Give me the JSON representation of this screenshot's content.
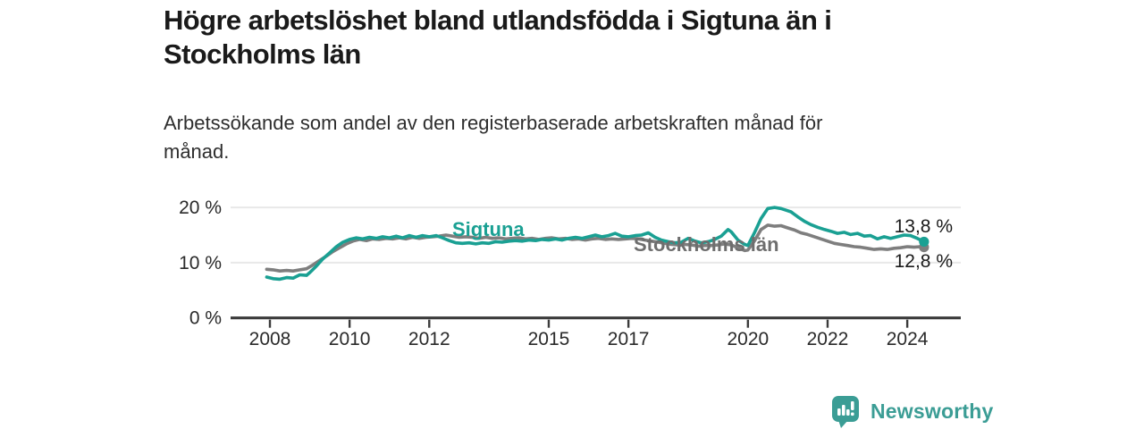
{
  "header": {
    "title_lines": [
      "Högre arbetslöshet bland utlandsfödda i Sigtuna än i",
      "Stockholms län"
    ],
    "subtitle_lines": [
      "Arbetssökande som andel av den registerbaserade arbetskraften månad för",
      "månad."
    ]
  },
  "chart_data": {
    "type": "line",
    "title": "Högre arbetslöshet bland utlandsfödda i Sigtuna än i Stockholms län",
    "subtitle": "Arbetssökande som andel av den registerbaserade arbetskraften månad för månad.",
    "xlabel": "",
    "ylabel": "",
    "x_unit": "year (monthly observations)",
    "y_unit": "percent of registered labour force",
    "xlim": [
      2006.9,
      2025.4
    ],
    "ylim": [
      0,
      22
    ],
    "x_ticks": [
      2008,
      2010,
      2012,
      2015,
      2017,
      2020,
      2022,
      2024
    ],
    "y_ticks": [
      {
        "value": 0,
        "label": "0 %"
      },
      {
        "value": 10,
        "label": "10 %"
      },
      {
        "value": 20,
        "label": "20 %"
      }
    ],
    "grid": "horizontal-light",
    "legend": "inline-labels-on-lines",
    "series": [
      {
        "name": "Stockholms län",
        "color": "#7e7e7e",
        "label_color": "#6e6e6e",
        "end_value": 12.8,
        "end_label": "12,8 %",
        "points": [
          [
            2007.92,
            8.8
          ],
          [
            2008.08,
            8.7
          ],
          [
            2008.25,
            8.5
          ],
          [
            2008.42,
            8.6
          ],
          [
            2008.58,
            8.5
          ],
          [
            2008.75,
            8.7
          ],
          [
            2008.92,
            8.9
          ],
          [
            2009.08,
            9.6
          ],
          [
            2009.25,
            10.4
          ],
          [
            2009.42,
            11.2
          ],
          [
            2009.58,
            12.0
          ],
          [
            2009.75,
            12.7
          ],
          [
            2009.92,
            13.4
          ],
          [
            2010.08,
            13.9
          ],
          [
            2010.25,
            14.2
          ],
          [
            2010.42,
            14.0
          ],
          [
            2010.58,
            14.3
          ],
          [
            2010.75,
            14.2
          ],
          [
            2010.92,
            14.4
          ],
          [
            2011.08,
            14.3
          ],
          [
            2011.25,
            14.5
          ],
          [
            2011.42,
            14.3
          ],
          [
            2011.58,
            14.6
          ],
          [
            2011.75,
            14.4
          ],
          [
            2011.92,
            14.6
          ],
          [
            2012.08,
            14.7
          ],
          [
            2012.25,
            14.8
          ],
          [
            2012.42,
            15.0
          ],
          [
            2012.58,
            14.8
          ],
          [
            2012.75,
            14.6
          ],
          [
            2012.92,
            14.7
          ],
          [
            2013.08,
            14.6
          ],
          [
            2013.25,
            14.4
          ],
          [
            2013.42,
            14.6
          ],
          [
            2013.58,
            14.4
          ],
          [
            2013.75,
            14.5
          ],
          [
            2013.92,
            14.3
          ],
          [
            2014.08,
            14.4
          ],
          [
            2014.25,
            14.5
          ],
          [
            2014.42,
            14.3
          ],
          [
            2014.58,
            14.4
          ],
          [
            2014.75,
            14.2
          ],
          [
            2014.92,
            14.4
          ],
          [
            2015.08,
            14.5
          ],
          [
            2015.25,
            14.3
          ],
          [
            2015.42,
            14.4
          ],
          [
            2015.58,
            14.2
          ],
          [
            2015.75,
            14.3
          ],
          [
            2015.92,
            14.1
          ],
          [
            2016.08,
            14.3
          ],
          [
            2016.25,
            14.4
          ],
          [
            2016.42,
            14.2
          ],
          [
            2016.58,
            14.3
          ],
          [
            2016.75,
            14.2
          ],
          [
            2016.92,
            14.3
          ],
          [
            2017.08,
            14.4
          ],
          [
            2017.25,
            14.3
          ],
          [
            2017.42,
            14.1
          ],
          [
            2017.58,
            13.9
          ],
          [
            2017.75,
            13.7
          ],
          [
            2017.92,
            13.5
          ],
          [
            2018.08,
            13.3
          ],
          [
            2018.25,
            13.2
          ],
          [
            2018.42,
            13.3
          ],
          [
            2018.58,
            13.2
          ],
          [
            2018.75,
            13.0
          ],
          [
            2018.92,
            13.1
          ],
          [
            2019.08,
            13.1
          ],
          [
            2019.25,
            13.2
          ],
          [
            2019.42,
            13.4
          ],
          [
            2019.58,
            13.2
          ],
          [
            2019.75,
            12.7
          ],
          [
            2019.92,
            12.2
          ],
          [
            2020.0,
            12.3
          ],
          [
            2020.17,
            14.0
          ],
          [
            2020.33,
            16.0
          ],
          [
            2020.5,
            16.8
          ],
          [
            2020.67,
            16.6
          ],
          [
            2020.83,
            16.7
          ],
          [
            2021.0,
            16.3
          ],
          [
            2021.17,
            15.9
          ],
          [
            2021.33,
            15.4
          ],
          [
            2021.5,
            15.1
          ],
          [
            2021.67,
            14.7
          ],
          [
            2021.83,
            14.3
          ],
          [
            2022.0,
            13.9
          ],
          [
            2022.17,
            13.5
          ],
          [
            2022.33,
            13.3
          ],
          [
            2022.5,
            13.1
          ],
          [
            2022.67,
            12.9
          ],
          [
            2022.83,
            12.8
          ],
          [
            2023.0,
            12.6
          ],
          [
            2023.17,
            12.4
          ],
          [
            2023.33,
            12.5
          ],
          [
            2023.5,
            12.4
          ],
          [
            2023.67,
            12.6
          ],
          [
            2023.83,
            12.7
          ],
          [
            2024.0,
            12.9
          ],
          [
            2024.17,
            12.8
          ],
          [
            2024.33,
            12.9
          ],
          [
            2024.42,
            12.8
          ]
        ]
      },
      {
        "name": "Sigtuna",
        "color": "#1aa093",
        "label_color": "#1aa093",
        "end_value": 13.8,
        "end_label": "13,8 %",
        "points": [
          [
            2007.92,
            7.4
          ],
          [
            2008.08,
            7.1
          ],
          [
            2008.25,
            7.0
          ],
          [
            2008.42,
            7.3
          ],
          [
            2008.58,
            7.2
          ],
          [
            2008.75,
            7.8
          ],
          [
            2008.92,
            7.7
          ],
          [
            2009.0,
            8.2
          ],
          [
            2009.17,
            9.4
          ],
          [
            2009.33,
            10.7
          ],
          [
            2009.5,
            11.8
          ],
          [
            2009.67,
            12.9
          ],
          [
            2009.83,
            13.7
          ],
          [
            2010.0,
            14.2
          ],
          [
            2010.17,
            14.5
          ],
          [
            2010.33,
            14.3
          ],
          [
            2010.5,
            14.6
          ],
          [
            2010.67,
            14.4
          ],
          [
            2010.83,
            14.7
          ],
          [
            2011.0,
            14.5
          ],
          [
            2011.17,
            14.8
          ],
          [
            2011.33,
            14.5
          ],
          [
            2011.5,
            14.9
          ],
          [
            2011.67,
            14.6
          ],
          [
            2011.83,
            14.9
          ],
          [
            2012.0,
            14.7
          ],
          [
            2012.17,
            14.9
          ],
          [
            2012.33,
            14.5
          ],
          [
            2012.5,
            14.0
          ],
          [
            2012.67,
            13.6
          ],
          [
            2012.83,
            13.5
          ],
          [
            2013.0,
            13.6
          ],
          [
            2013.17,
            13.4
          ],
          [
            2013.33,
            13.6
          ],
          [
            2013.5,
            13.5
          ],
          [
            2013.67,
            13.8
          ],
          [
            2013.83,
            13.7
          ],
          [
            2014.0,
            13.9
          ],
          [
            2014.17,
            14.0
          ],
          [
            2014.33,
            13.9
          ],
          [
            2014.5,
            14.1
          ],
          [
            2014.67,
            14.0
          ],
          [
            2014.83,
            14.2
          ],
          [
            2015.0,
            14.1
          ],
          [
            2015.17,
            14.3
          ],
          [
            2015.33,
            14.1
          ],
          [
            2015.5,
            14.4
          ],
          [
            2015.67,
            14.6
          ],
          [
            2015.83,
            14.4
          ],
          [
            2016.0,
            14.7
          ],
          [
            2016.17,
            15.0
          ],
          [
            2016.33,
            14.7
          ],
          [
            2016.5,
            14.9
          ],
          [
            2016.67,
            15.3
          ],
          [
            2016.83,
            14.8
          ],
          [
            2017.0,
            14.7
          ],
          [
            2017.17,
            14.9
          ],
          [
            2017.33,
            15.0
          ],
          [
            2017.5,
            15.4
          ],
          [
            2017.67,
            14.6
          ],
          [
            2017.83,
            14.1
          ],
          [
            2018.0,
            13.8
          ],
          [
            2018.17,
            13.6
          ],
          [
            2018.33,
            13.7
          ],
          [
            2018.5,
            14.4
          ],
          [
            2018.67,
            13.9
          ],
          [
            2018.83,
            13.6
          ],
          [
            2019.0,
            13.8
          ],
          [
            2019.17,
            14.2
          ],
          [
            2019.33,
            14.8
          ],
          [
            2019.5,
            16.0
          ],
          [
            2019.58,
            15.6
          ],
          [
            2019.75,
            14.1
          ],
          [
            2019.92,
            13.3
          ],
          [
            2020.0,
            13.1
          ],
          [
            2020.17,
            15.5
          ],
          [
            2020.33,
            18.0
          ],
          [
            2020.5,
            19.8
          ],
          [
            2020.67,
            20.0
          ],
          [
            2020.83,
            19.8
          ],
          [
            2021.0,
            19.4
          ],
          [
            2021.08,
            19.2
          ],
          [
            2021.25,
            18.3
          ],
          [
            2021.42,
            17.5
          ],
          [
            2021.58,
            16.9
          ],
          [
            2021.75,
            16.4
          ],
          [
            2021.92,
            16.0
          ],
          [
            2022.08,
            15.7
          ],
          [
            2022.25,
            15.3
          ],
          [
            2022.42,
            15.5
          ],
          [
            2022.58,
            15.1
          ],
          [
            2022.75,
            15.3
          ],
          [
            2022.92,
            14.8
          ],
          [
            2023.08,
            14.9
          ],
          [
            2023.25,
            14.3
          ],
          [
            2023.42,
            14.7
          ],
          [
            2023.58,
            14.4
          ],
          [
            2023.75,
            14.7
          ],
          [
            2023.92,
            15.0
          ],
          [
            2024.08,
            14.9
          ],
          [
            2024.25,
            14.4
          ],
          [
            2024.42,
            13.8
          ]
        ]
      }
    ]
  },
  "footer": {
    "brand": "Newsworthy",
    "brand_color": "#3b9d95",
    "icon": "newsworthy-chart-bubble-icon"
  },
  "colors": {
    "background": "#ffffff",
    "title_text": "#1a1a1a",
    "subtitle_text": "#2e2e2e",
    "axis_line": "#3b3b3b",
    "gridline": "#e8e8e8",
    "tick_label": "#2a2a2a",
    "end_label_text": "#1a1a1a",
    "sigtuna_accent": "#1aa093",
    "stockholm_accent": "#7e7e7e"
  }
}
